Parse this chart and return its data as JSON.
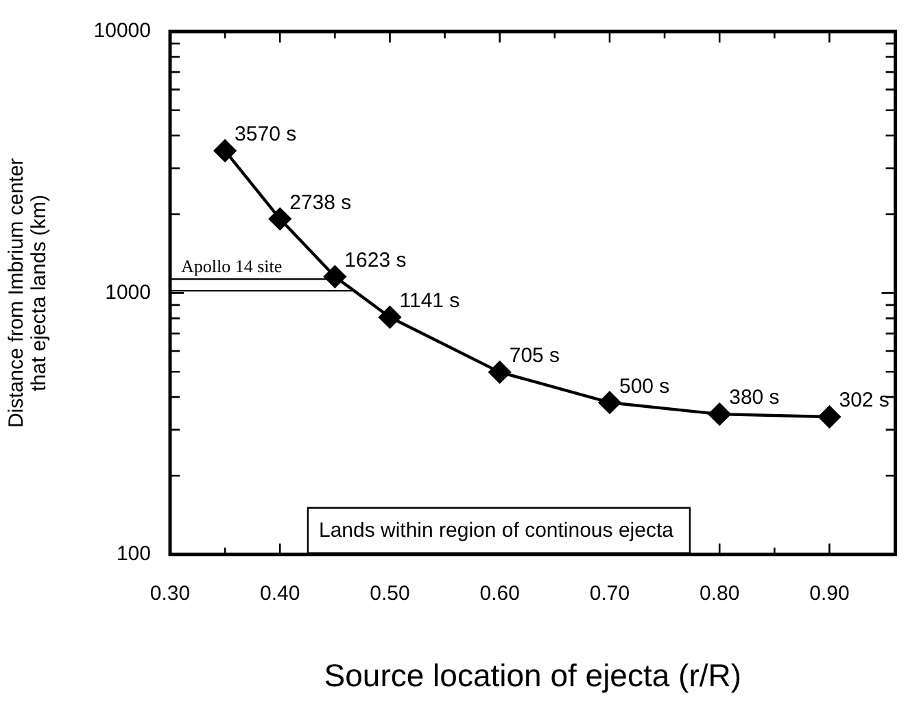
{
  "chart_data": {
    "type": "line",
    "xlabel": "Source location of ejecta (r/R)",
    "ylabel": "Distance from Imbrium center that ejecta lands (km)",
    "x": [
      0.35,
      0.4,
      0.45,
      0.5,
      0.6,
      0.7,
      0.8,
      0.9
    ],
    "series": [
      {
        "color": "#000000",
        "values": [
          3500,
          1920,
          1155,
          808,
          498,
          381,
          344,
          336
        ]
      }
    ],
    "xlim": [
      0.3,
      0.96
    ],
    "xticks": [
      {
        "value": 0.3,
        "label": "0.30"
      },
      {
        "value": 0.35,
        "label": null
      },
      {
        "value": 0.4,
        "label": "0.40"
      },
      {
        "value": 0.45,
        "label": null
      },
      {
        "value": 0.5,
        "label": "0.50"
      },
      {
        "value": 0.55,
        "label": null
      },
      {
        "value": 0.6,
        "label": "0.60"
      },
      {
        "value": 0.65,
        "label": null
      },
      {
        "value": 0.7,
        "label": "0.70"
      },
      {
        "value": 0.75,
        "label": null
      },
      {
        "value": 0.8,
        "label": "0.80"
      },
      {
        "value": 0.85,
        "label": null
      },
      {
        "value": 0.9,
        "label": "0.90"
      }
    ],
    "ylim": [
      100,
      10000
    ],
    "yticks": [
      100,
      {
        "value": 200,
        "label": null
      },
      {
        "value": 300,
        "label": null
      },
      {
        "value": 400,
        "label": null
      },
      {
        "value": 500,
        "label": null
      },
      {
        "value": 600,
        "label": null
      },
      {
        "value": 700,
        "label": null
      },
      {
        "value": 800,
        "label": null
      },
      {
        "value": 900,
        "label": null
      },
      1000,
      {
        "value": 2000,
        "label": null
      },
      {
        "value": 3000,
        "label": null
      },
      {
        "value": 4000,
        "label": null
      },
      {
        "value": 5000,
        "label": null
      },
      {
        "value": 6000,
        "label": null
      },
      {
        "value": 7000,
        "label": null
      },
      {
        "value": 8000,
        "label": null
      },
      {
        "value": 9000,
        "label": null
      },
      10000
    ],
    "log": "y",
    "grid": false,
    "legend": false,
    "marker": "diamond",
    "line_style": "solid",
    "ref_lines": [
      {
        "axis": "y",
        "value": 1130,
        "label": "Apollo 14 site",
        "color": "#000000"
      },
      {
        "axis": "y",
        "value": 1020,
        "color": "#000000"
      }
    ],
    "annotations": [
      {
        "text": "3570 s",
        "x": 0.35,
        "y": 3500
      },
      {
        "text": "2738 s",
        "x": 0.4,
        "y": 1920
      },
      {
        "text": "1623 s",
        "x": 0.45,
        "y": 1155
      },
      {
        "text": "1141 s",
        "x": 0.5,
        "y": 808
      },
      {
        "text": "705 s",
        "x": 0.6,
        "y": 498
      },
      {
        "text": "500 s",
        "x": 0.7,
        "y": 381
      },
      {
        "text": "380 s",
        "x": 0.8,
        "y": 344
      },
      {
        "text": "302 s",
        "x": 0.9,
        "y": 336
      },
      "Lands within region of continous ejecta"
    ]
  }
}
